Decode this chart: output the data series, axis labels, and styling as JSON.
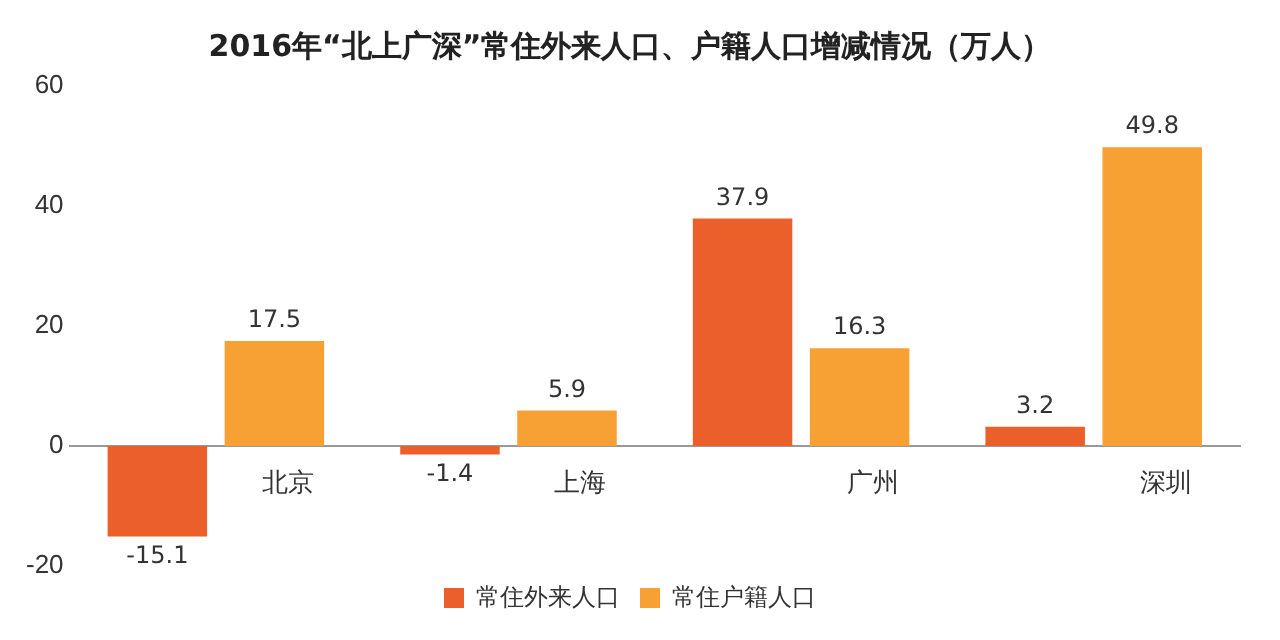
{
  "chart_data": {
    "type": "bar",
    "title": "2016年“北上广深”常住外来人口、户籍人口增减情况（万人）",
    "categories": [
      "北京",
      "上海",
      "广州",
      "深圳"
    ],
    "series": [
      {
        "name": "常住外来人口",
        "color": "#ea5f2a",
        "values": [
          -15.1,
          -1.4,
          37.9,
          3.2
        ]
      },
      {
        "name": "常住户籍人口",
        "color": "#f7a135",
        "values": [
          17.5,
          5.9,
          16.3,
          49.8
        ]
      }
    ],
    "ylim": [
      -20,
      60
    ],
    "yticks": [
      -20,
      0,
      20,
      40,
      60
    ],
    "grid": false,
    "legend": "bottom",
    "data_labels": true
  }
}
